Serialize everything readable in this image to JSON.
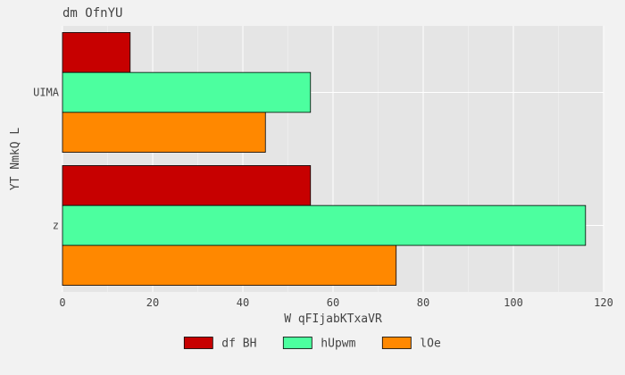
{
  "chart_data": {
    "type": "bar",
    "orientation": "horizontal",
    "title": "dm OfnYU",
    "xlabel": "W qFIjabKTxaVR",
    "ylabel": "YT NmkQ L",
    "categories": [
      "UIMA",
      "z"
    ],
    "series": [
      {
        "name": "df BH",
        "color": "#c70000",
        "values": [
          15,
          55
        ]
      },
      {
        "name": "hUpwm",
        "color": "#4cff9f",
        "values": [
          55,
          116
        ]
      },
      {
        "name": "lOe",
        "color": "#ff8800",
        "values": [
          45,
          74
        ]
      }
    ],
    "xlim": [
      0,
      120
    ],
    "xticks": [
      0,
      20,
      40,
      60,
      80,
      100,
      120
    ],
    "grid": true,
    "legend_position": "bottom"
  },
  "colors": {
    "page_background": "#f2f2f2",
    "plot_background": "#e5e5e5",
    "grid": "#ffffff",
    "text": "#444444",
    "bar_edge": "#000000"
  }
}
